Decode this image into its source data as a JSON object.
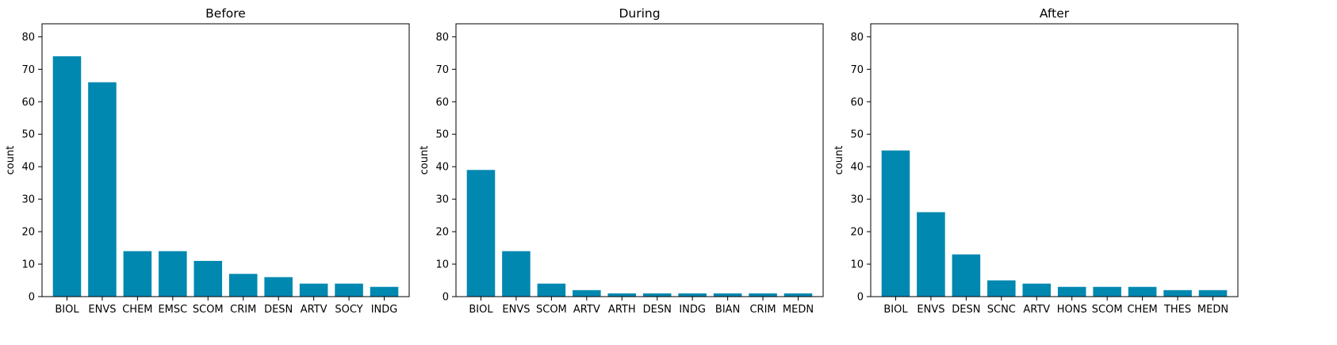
{
  "chart_data": [
    {
      "type": "bar",
      "title": "Before",
      "xlabel": "",
      "ylabel": "count",
      "ylim": [
        0,
        84
      ],
      "yticks": [
        0,
        10,
        20,
        30,
        40,
        50,
        60,
        70,
        80
      ],
      "categories": [
        "BIOL",
        "ENVS",
        "CHEM",
        "EMSC",
        "SCOM",
        "CRIM",
        "DESN",
        "ARTV",
        "SOCY",
        "INDG"
      ],
      "values": [
        74,
        66,
        14,
        14,
        11,
        7,
        6,
        4,
        4,
        3
      ],
      "color": "#0088b0"
    },
    {
      "type": "bar",
      "title": "During",
      "xlabel": "",
      "ylabel": "count",
      "ylim": [
        0,
        84
      ],
      "yticks": [
        0,
        10,
        20,
        30,
        40,
        50,
        60,
        70,
        80
      ],
      "categories": [
        "BIOL",
        "ENVS",
        "SCOM",
        "ARTV",
        "ARTH",
        "DESN",
        "INDG",
        "BIAN",
        "CRIM",
        "MEDN"
      ],
      "values": [
        39,
        14,
        4,
        2,
        1,
        1,
        1,
        1,
        1,
        1
      ],
      "color": "#0088b0"
    },
    {
      "type": "bar",
      "title": "After",
      "xlabel": "",
      "ylabel": "count",
      "ylim": [
        0,
        84
      ],
      "yticks": [
        0,
        10,
        20,
        30,
        40,
        50,
        60,
        70,
        80
      ],
      "categories": [
        "BIOL",
        "ENVS",
        "DESN",
        "SCNC",
        "ARTV",
        "HONS",
        "SCOM",
        "CHEM",
        "THES",
        "MEDN"
      ],
      "values": [
        45,
        26,
        13,
        5,
        4,
        3,
        3,
        3,
        2,
        2
      ],
      "color": "#0088b0"
    }
  ]
}
